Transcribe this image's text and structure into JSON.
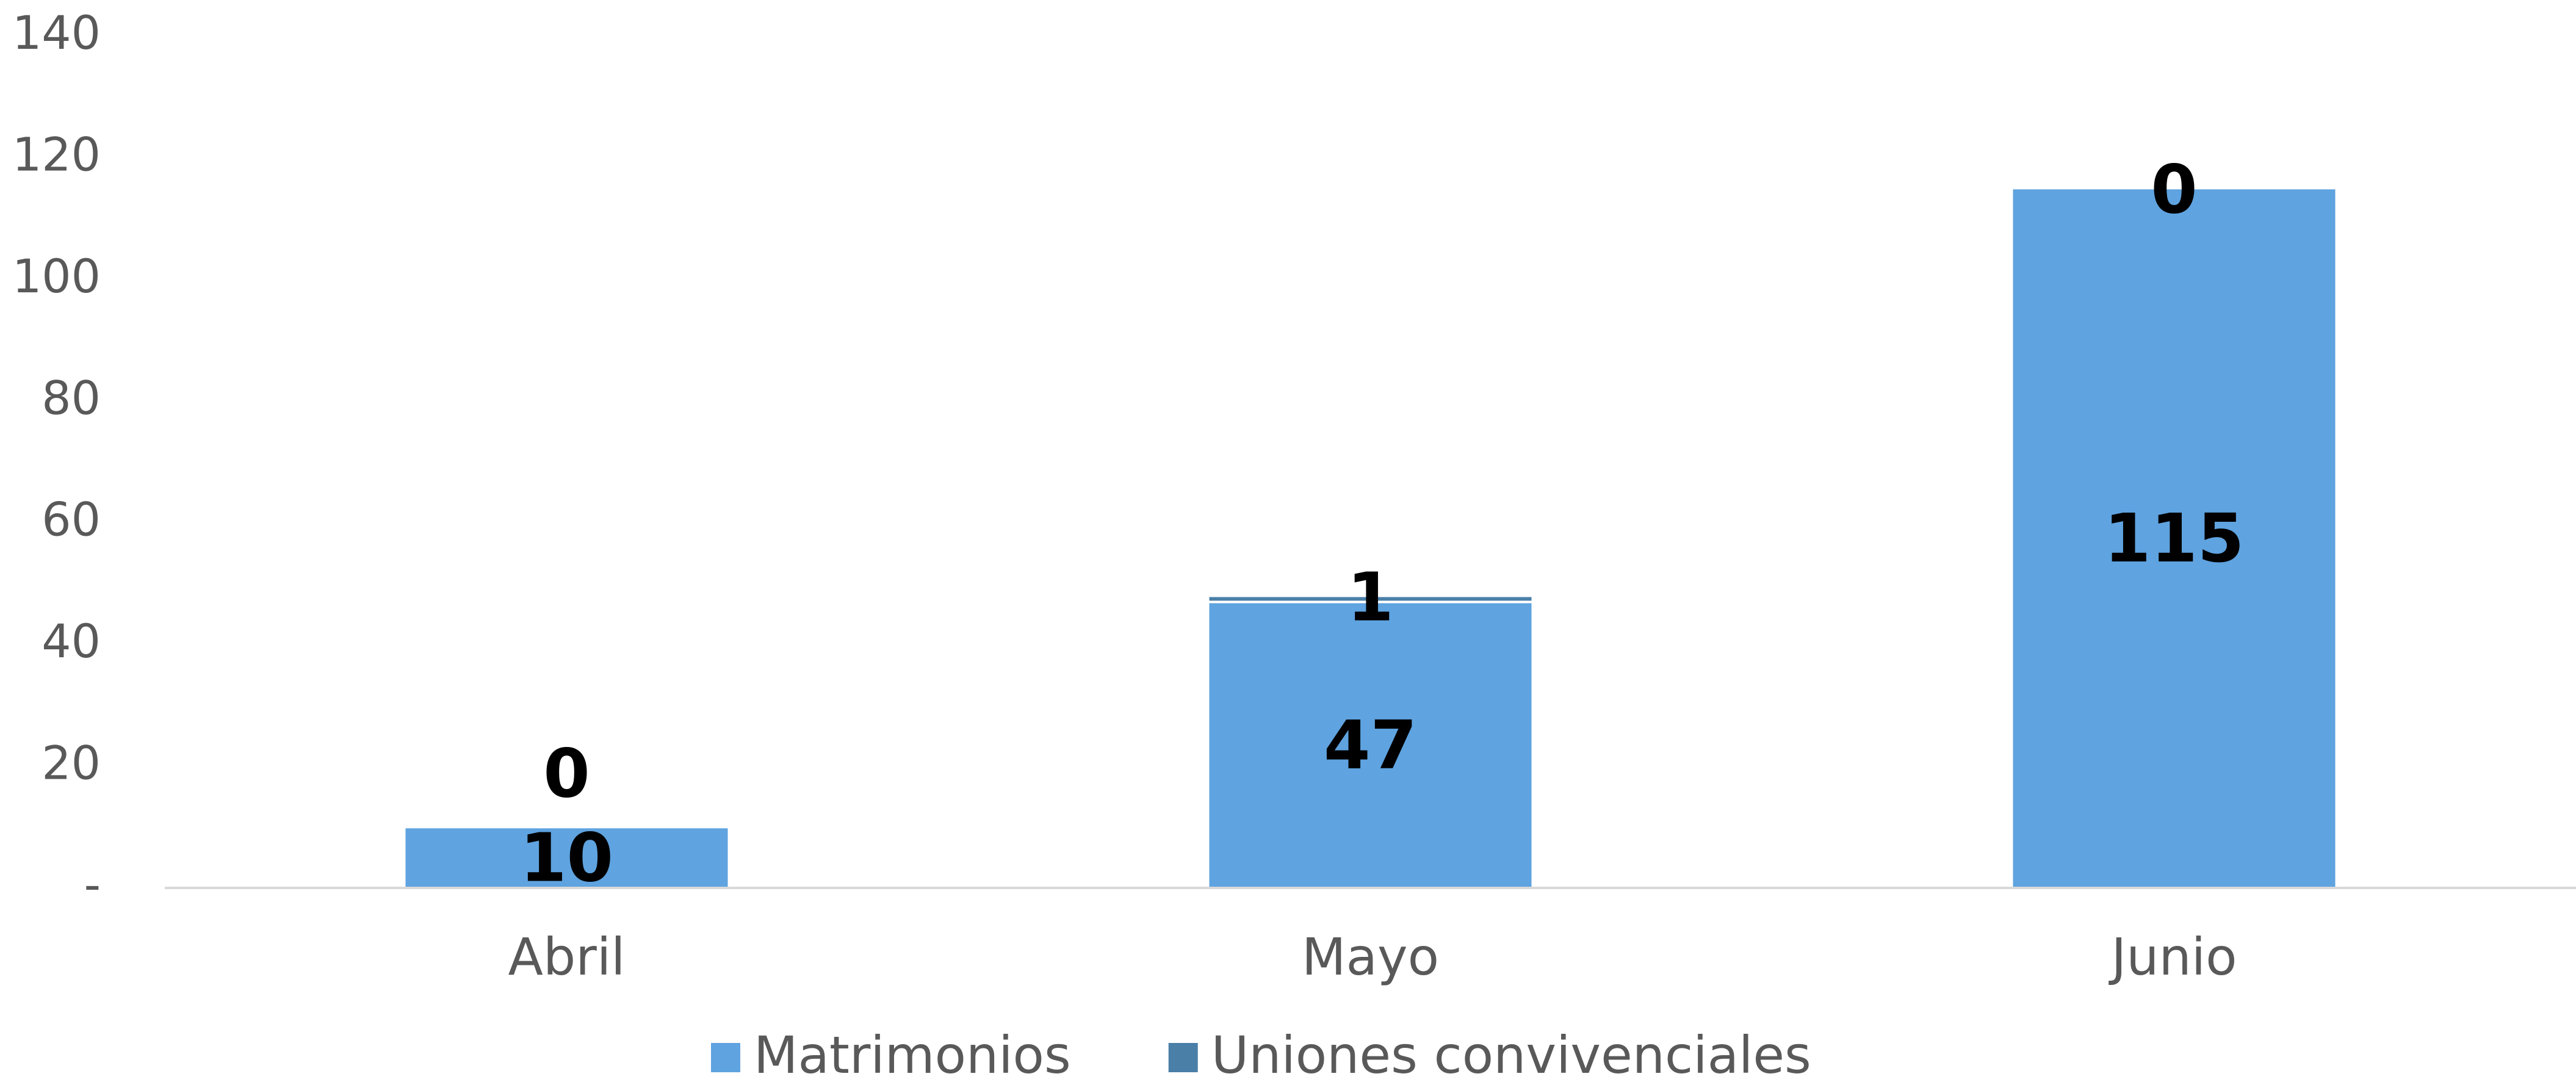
{
  "chart_data": {
    "type": "stacked_bar",
    "categories": [
      "Abril",
      "Mayo",
      "Junio"
    ],
    "series": [
      {
        "name": "Matrimonios",
        "color": "#5fa3e0",
        "values": [
          10,
          47,
          115
        ]
      },
      {
        "name": "Uniones convivenciales",
        "color": "#4a7fa8",
        "values": [
          0,
          1,
          0
        ]
      }
    ],
    "ylim": [
      0,
      140
    ],
    "yticks": [
      {
        "value": 0,
        "label": "-"
      },
      20,
      40,
      60,
      80,
      100,
      120,
      140
    ],
    "grid": false,
    "legend": "bottom"
  }
}
